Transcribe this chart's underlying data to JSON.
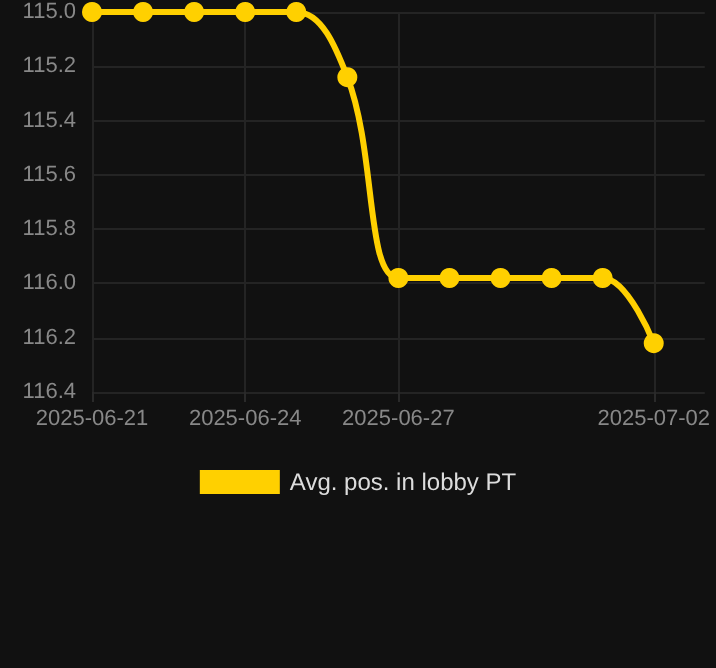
{
  "chart_data": {
    "type": "line",
    "x": [
      "2025-06-21",
      "2025-06-22",
      "2025-06-23",
      "2025-06-24",
      "2025-06-25",
      "2025-06-26",
      "2025-06-27",
      "2025-06-28",
      "2025-06-29",
      "2025-06-30",
      "2025-07-01",
      "2025-07-02"
    ],
    "series": [
      {
        "name": "Avg. pos. in lobby PT",
        "color": "#ffd000",
        "values": [
          115.0,
          115.0,
          115.0,
          115.0,
          115.0,
          115.24,
          115.98,
          115.98,
          115.98,
          115.98,
          115.98,
          116.22
        ]
      }
    ],
    "xlim": [
      "2025-06-21",
      "2025-07-03"
    ],
    "xticks": [
      "2025-06-21",
      "2025-06-24",
      "2025-06-27",
      "2025-07-02"
    ],
    "ylim": [
      116.4,
      115.0
    ],
    "yticks": [
      {
        "value": 115,
        "label": "115.0"
      },
      115.2,
      115.4,
      115.6,
      115.8,
      {
        "value": 116,
        "label": "116.0"
      },
      116.2,
      116.4
    ],
    "grid": true,
    "legend": "bottom",
    "marker": "circle",
    "line_style": "solid"
  }
}
